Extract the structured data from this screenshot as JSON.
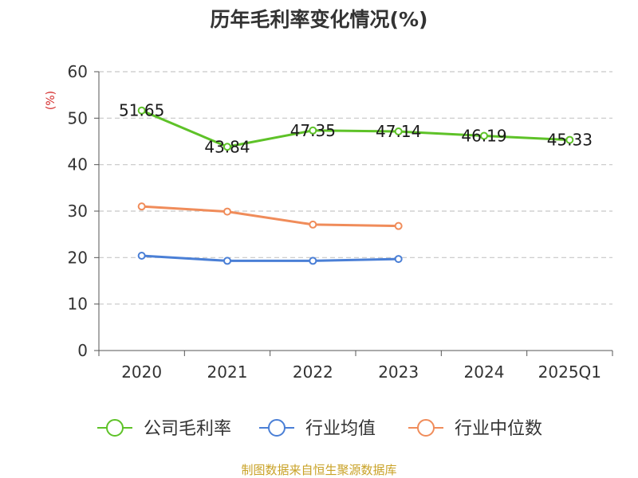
{
  "chart_data": {
    "type": "line",
    "title": "历年毛利率变化情况(%)",
    "unit_label": "(%)",
    "categories": [
      "2020",
      "2021",
      "2022",
      "2023",
      "2024",
      "2025Q1"
    ],
    "ylim": [
      0,
      60
    ],
    "yticks": [
      0,
      10,
      20,
      30,
      40,
      50,
      60
    ],
    "grid": true,
    "legend_position": "bottom",
    "series": [
      {
        "name": "公司毛利率",
        "color": "#5ec228",
        "values": [
          51.65,
          43.84,
          47.35,
          47.14,
          46.19,
          45.33
        ],
        "labels": [
          "51.65",
          "43.84",
          "47.35",
          "47.14",
          "46.19",
          "45.33"
        ]
      },
      {
        "name": "行业均值",
        "color": "#4a7fd6",
        "values": [
          20.4,
          19.3,
          19.3,
          19.7,
          null,
          null
        ]
      },
      {
        "name": "行业中位数",
        "color": "#f08c5a",
        "values": [
          31.0,
          29.9,
          27.1,
          26.8,
          null,
          null
        ]
      }
    ]
  },
  "source": "制图数据来自恒生聚源数据库"
}
